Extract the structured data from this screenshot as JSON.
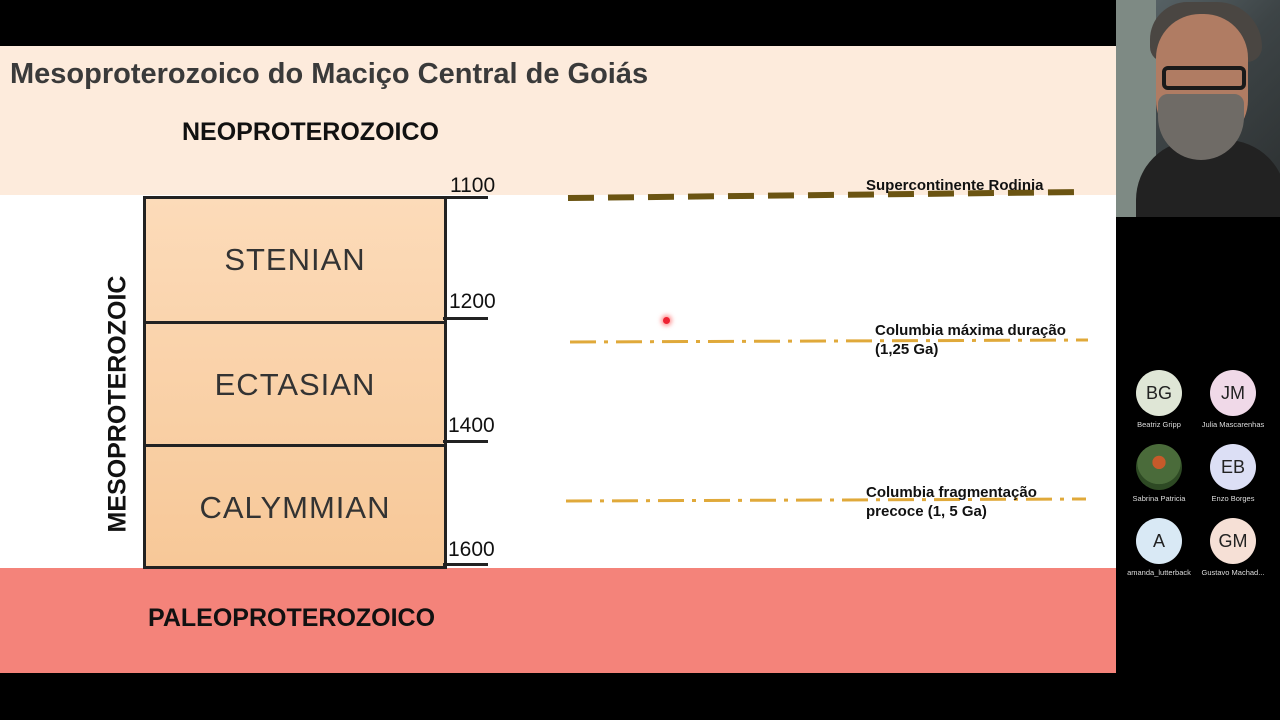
{
  "slide": {
    "title": "Mesoproterozoico do Maciço Central de Goiás",
    "era_top": "NEOPROTEROZOICO",
    "era_bottom": "PALEOPROTEROZOICO",
    "era_side": "MESOPROTEROZOIC",
    "periods": [
      "STENIAN",
      "ECTASIAN",
      "CALYMMIAN"
    ],
    "ages": [
      "1100",
      "1200",
      "1400",
      "1600"
    ],
    "events": [
      {
        "line1": "Supercontinente Rodinia",
        "line2": ""
      },
      {
        "line1": "Columbia máxima duração",
        "line2": "(1,25 Ga)"
      },
      {
        "line1": "Columbia fragmentação",
        "line2": "precoce (1, 5 Ga)"
      }
    ]
  },
  "colors": {
    "top_band": "#fdebdc",
    "bottom_band": "#f4837a",
    "rodinia_line": "#6b5412",
    "columbia_line": "#e0a93a"
  },
  "participants": [
    {
      "initials": "BG",
      "name": "Beatriz Gripp",
      "color": "#dfe6d6"
    },
    {
      "initials": "JM",
      "name": "Julia Mascarenhas",
      "color": "#f0d9e8"
    },
    {
      "initials": "",
      "name": "Sabrina Patricia",
      "color": "#4a6b3a"
    },
    {
      "initials": "EB",
      "name": "Enzo Borges",
      "color": "#dcdff5"
    },
    {
      "initials": "A",
      "name": "amanda_lutterback",
      "color": "#d9e9f5"
    },
    {
      "initials": "GM",
      "name": "Gustavo Machad...",
      "color": "#f6e0d6"
    }
  ]
}
